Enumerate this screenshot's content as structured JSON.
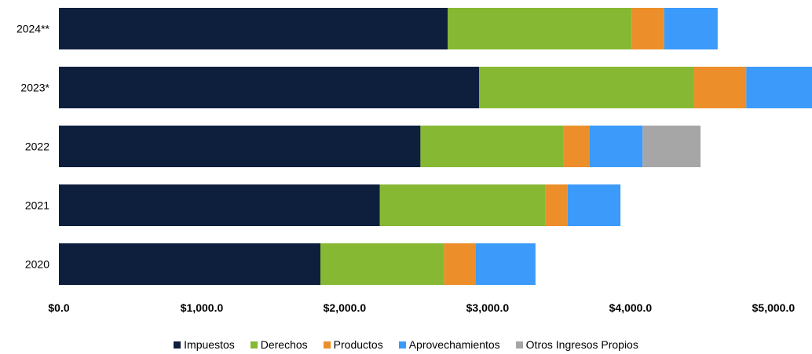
{
  "chart_data": {
    "type": "bar",
    "orientation": "horizontal",
    "stacked": true,
    "categories": [
      "2024**",
      "2023*",
      "2022",
      "2021",
      "2020"
    ],
    "series": [
      {
        "name": "Impuestos",
        "color": "#0e1f3e",
        "values": [
          2720,
          2940,
          2530,
          2245,
          1830
        ]
      },
      {
        "name": "Derechos",
        "color": "#86b833",
        "values": [
          1290,
          1500,
          1000,
          1160,
          865
        ]
      },
      {
        "name": "Productos",
        "color": "#ec8f2a",
        "values": [
          225,
          370,
          185,
          155,
          220
        ]
      },
      {
        "name": "Aprovechamientos",
        "color": "#3c9afa",
        "values": [
          375,
          480,
          370,
          370,
          420
        ]
      },
      {
        "name": "Otros Ingresos Propios",
        "color": "#a6a6a6",
        "values": [
          0,
          0,
          405,
          0,
          0
        ]
      }
    ],
    "x_ticks": [
      "$0.0",
      "$1,000.0",
      "$2,000.0",
      "$3,000.0",
      "$4,000.0",
      "$5,000.0"
    ],
    "x_tick_values": [
      0,
      1000,
      2000,
      3000,
      4000,
      5000
    ],
    "xlim": [
      0,
      5270
    ],
    "grid": false,
    "legend_position": "bottom"
  }
}
